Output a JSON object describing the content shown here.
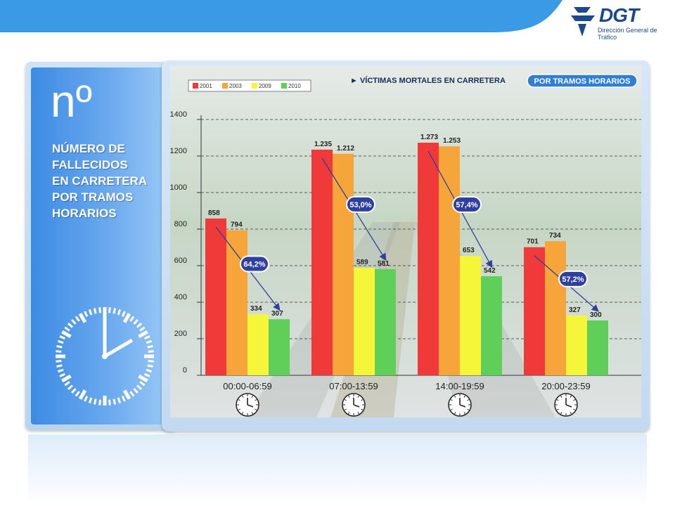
{
  "logo": {
    "title": "DGT",
    "subtitle": "Dirección General de Tráfico"
  },
  "left_panel": {
    "symbol": "nº",
    "caption_lines": [
      "NÚMERO DE",
      "FALLECIDOS",
      "EN CARRETERA",
      "POR TRAMOS",
      "HORARIOS"
    ],
    "icon": "clock-icon"
  },
  "header": {
    "title": "► VÍCTIMAS MORTALES EN CARRETERA",
    "badge": "POR TRAMOS HORARIOS"
  },
  "colors": {
    "2001": "#f03a3a",
    "2003": "#f6a53a",
    "2009": "#f5f53a",
    "2010": "#5fcf5a",
    "badge": "#2f7fd8",
    "arrow": "#2f3f9f",
    "bubble": "#2e3f9f",
    "top_band": "#3a9ae6"
  },
  "chart_data": {
    "type": "bar",
    "title": "VÍCTIMAS MORTALES EN CARRETERA",
    "categories": [
      "00:00-06:59",
      "07:00-13:59",
      "14:00-19:59",
      "20:00-23:59"
    ],
    "series": [
      {
        "name": "2001",
        "values": [
          858,
          1235,
          1273,
          701
        ],
        "labels": [
          "858",
          "1.235",
          "1.273",
          "701"
        ]
      },
      {
        "name": "2003",
        "values": [
          794,
          1212,
          1253,
          734
        ],
        "labels": [
          "794",
          "1.212",
          "1.253",
          "734"
        ]
      },
      {
        "name": "2009",
        "values": [
          334,
          589,
          653,
          327
        ],
        "labels": [
          "334",
          "589",
          "653",
          "327"
        ]
      },
      {
        "name": "2010",
        "values": [
          307,
          581,
          542,
          300
        ],
        "labels": [
          "307",
          "581",
          "542",
          "300"
        ]
      }
    ],
    "reductions": [
      "64,2%",
      "53,0%",
      "57,4%",
      "57,2%"
    ],
    "yticks": [
      0,
      200,
      400,
      600,
      800,
      1000,
      1200,
      1400
    ],
    "ylim": [
      0,
      1400
    ],
    "grid": true,
    "legend": "top-left",
    "xlabel": "",
    "ylabel": ""
  }
}
